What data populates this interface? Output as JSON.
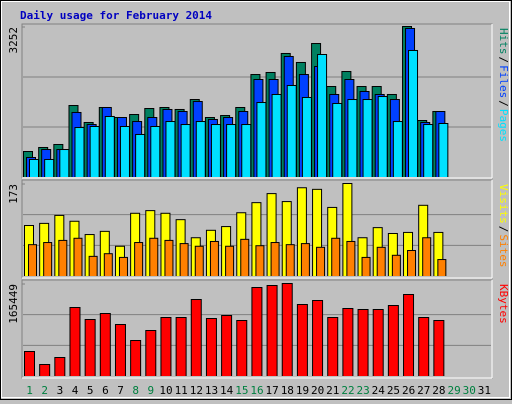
{
  "chart_data": [
    {
      "type": "bar",
      "title": "Daily usage for February 2014",
      "ylim": [
        0,
        3252
      ],
      "yticks": [
        3252
      ],
      "legend_separator": "/",
      "series": [
        {
          "name": "Hits",
          "color": "#008060",
          "values": [
            542,
            629,
            694,
            1539,
            1171,
            1496,
            1279,
            1344,
            1474,
            1496,
            1453,
            1669,
            1279,
            1322,
            1496,
            2211,
            2255,
            2667,
            2472,
            2883,
            1951,
            2276,
            1951,
            1951,
            1778,
            3252,
            1214,
            1409,
            null,
            null,
            null
          ]
        },
        {
          "name": "Files",
          "color": "#0040ff",
          "values": [
            412,
            585,
            585,
            1388,
            1127,
            1496,
            1279,
            1192,
            1279,
            1453,
            1409,
            1626,
            1236,
            1279,
            1409,
            2103,
            2103,
            2602,
            2211,
            2385,
            1778,
            2103,
            1843,
            1778,
            1669,
            3209,
            1171,
            1409,
            null,
            null,
            null
          ]
        },
        {
          "name": "Pages",
          "color": "#00e0ff",
          "values": [
            369,
            369,
            585,
            1062,
            1084,
            1301,
            1084,
            911,
            1084,
            1192,
            1127,
            1192,
            1127,
            1127,
            1127,
            1604,
            1778,
            1973,
            1713,
            2645,
            1583,
            1669,
            1669,
            1734,
            1192,
            2732,
            1127,
            1149,
            null,
            null,
            null
          ]
        }
      ]
    },
    {
      "type": "bar",
      "ylim": [
        0,
        173
      ],
      "yticks": [
        173
      ],
      "legend_separator": "/",
      "series": [
        {
          "name": "Visits",
          "color": "#ffff00",
          "values": [
            94,
            98,
            113,
            102,
            77,
            83,
            55,
            117,
            122,
            117,
            105,
            71,
            85,
            92,
            118,
            137,
            154,
            139,
            165,
            162,
            128,
            173,
            71,
            90,
            79,
            81,
            132,
            81,
            null,
            null,
            null
          ]
        },
        {
          "name": "Sites",
          "color": "#ff8000",
          "values": [
            58,
            62,
            66,
            70,
            36,
            41,
            34,
            62,
            70,
            66,
            60,
            55,
            64,
            55,
            68,
            56,
            62,
            58,
            60,
            53,
            70,
            64,
            34,
            53,
            38,
            47,
            71,
            30,
            null,
            null,
            null
          ]
        }
      ]
    },
    {
      "type": "bar",
      "ylim": [
        0,
        165449
      ],
      "yticks": [
        165449
      ],
      "categories": [
        "1",
        "2",
        "3",
        "4",
        "5",
        "6",
        "7",
        "8",
        "9",
        "10",
        "11",
        "12",
        "13",
        "14",
        "15",
        "16",
        "17",
        "18",
        "19",
        "20",
        "21",
        "22",
        "23",
        "24",
        "25",
        "26",
        "27",
        "28",
        "29",
        "30",
        "31"
      ],
      "category_colors": [
        "#008040",
        "#008040",
        "#000000",
        "#000000",
        "#000000",
        "#000000",
        "#000000",
        "#008040",
        "#008040",
        "#000000",
        "#000000",
        "#000000",
        "#000000",
        "#000000",
        "#008040",
        "#008040",
        "#000000",
        "#000000",
        "#000000",
        "#000000",
        "#000000",
        "#008040",
        "#008040",
        "#000000",
        "#000000",
        "#000000",
        "#000000",
        "#000000",
        "#008040",
        "#008040",
        "#000000"
      ],
      "series": [
        {
          "name": "KBytes",
          "color": "#ff0000",
          "values": [
            43161,
            19782,
            32371,
            122291,
            100710,
            111501,
            91718,
            62944,
            80928,
            104307,
            104307,
            136678,
            102509,
            107904,
            98912,
            158259,
            161856,
            165449,
            127686,
            134880,
            104307,
            120493,
            118694,
            118694,
            125888,
            145670,
            104307,
            98912,
            null,
            null,
            null
          ]
        }
      ]
    }
  ]
}
